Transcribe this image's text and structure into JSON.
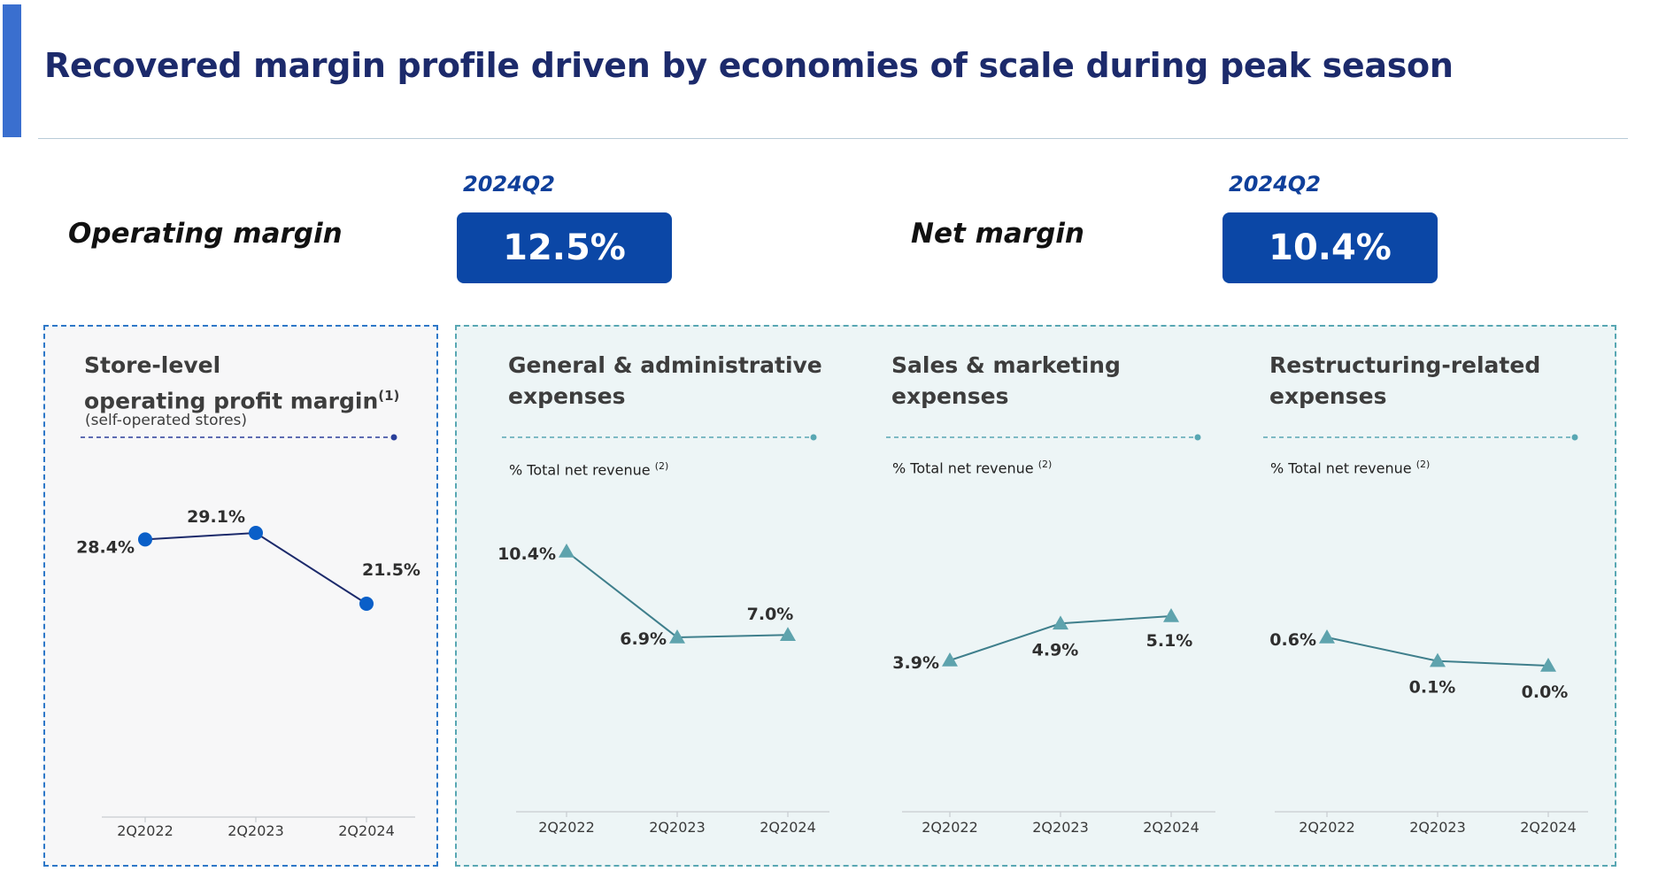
{
  "header": {
    "title": "Recovered margin profile driven by economies of scale during peak season"
  },
  "kpis": [
    {
      "label": "Operating margin",
      "period": "2024Q2",
      "value": "12.5%"
    },
    {
      "label": "Net margin",
      "period": "2024Q2",
      "value": "10.4%"
    }
  ],
  "colors": {
    "brand_navy": "#1c2a6b",
    "kpi_blue": "#0b47a6",
    "store_marker": "#0a5fc8",
    "store_line": "#1c2a6b",
    "expense_line": "#3f7f8c",
    "expense_marker": "#5ea3ad"
  },
  "chart_data": [
    {
      "type": "line",
      "title_line1": "Store-level",
      "title_line2": "operating profit margin",
      "title_sup": "(1)",
      "subtitle": "(self-operated stores)",
      "unit_note": "",
      "unit_sup": "",
      "categories": [
        "2Q2022",
        "2Q2023",
        "2Q2024"
      ],
      "values": [
        28.4,
        29.1,
        21.5
      ],
      "labels": [
        "28.4%",
        "29.1%",
        "21.5%"
      ],
      "marker": "circle"
    },
    {
      "type": "line",
      "title_line1": "General & administrative",
      "title_line2": "expenses",
      "title_sup": "",
      "subtitle": "",
      "unit_note": "% Total net revenue",
      "unit_sup": "(2)",
      "categories": [
        "2Q2022",
        "2Q2023",
        "2Q2024"
      ],
      "values": [
        10.4,
        6.9,
        7.0
      ],
      "labels": [
        "10.4%",
        "6.9%",
        "7.0%"
      ],
      "marker": "triangle"
    },
    {
      "type": "line",
      "title_line1": "Sales & marketing",
      "title_line2": "expenses",
      "title_sup": "",
      "subtitle": "",
      "unit_note": "% Total net revenue",
      "unit_sup": "(2)",
      "categories": [
        "2Q2022",
        "2Q2023",
        "2Q2024"
      ],
      "values": [
        3.9,
        4.9,
        5.1
      ],
      "labels": [
        "3.9%",
        "4.9%",
        "5.1%"
      ],
      "marker": "triangle"
    },
    {
      "type": "line",
      "title_line1": "Restructuring-related",
      "title_line2": "expenses",
      "title_sup": "",
      "subtitle": "",
      "unit_note": "% Total net revenue",
      "unit_sup": "(2)",
      "categories": [
        "2Q2022",
        "2Q2023",
        "2Q2024"
      ],
      "values": [
        0.6,
        0.1,
        0.0
      ],
      "labels": [
        "0.6%",
        "0.1%",
        "0.0%"
      ],
      "marker": "triangle"
    }
  ]
}
